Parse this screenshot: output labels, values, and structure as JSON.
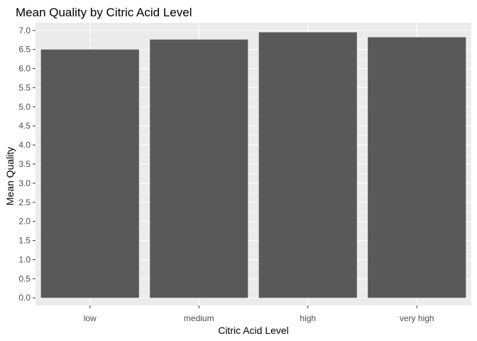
{
  "chart_data": {
    "type": "bar",
    "title": "Mean Quality by Citric Acid Level",
    "xlabel": "Citric Acid Level",
    "ylabel": "Mean Quality",
    "categories": [
      "low",
      "medium",
      "high",
      "very high"
    ],
    "values": [
      6.5,
      6.76,
      6.95,
      6.82
    ],
    "ylim": [
      -0.2,
      7.2
    ],
    "yticks": [
      "0.0",
      "0.5",
      "1.0",
      "1.5",
      "2.0",
      "2.5",
      "3.0",
      "3.5",
      "4.0",
      "4.5",
      "5.0",
      "5.5",
      "6.0",
      "6.5",
      "7.0"
    ],
    "grid": true,
    "colors": {
      "panel": "#ebebeb",
      "grid": "#ffffff",
      "bar": "#595959",
      "tick_text": "#4d4d4d",
      "tick_mark": "#333333"
    }
  }
}
